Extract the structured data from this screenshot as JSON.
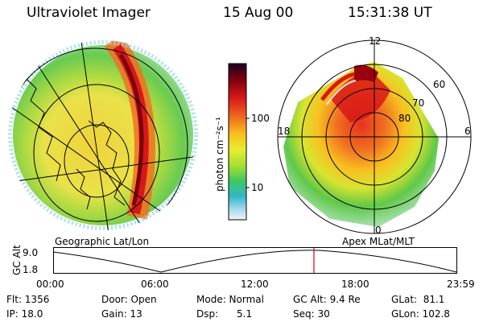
{
  "header": {
    "instrument": "Ultraviolet Imager",
    "date": "15 Aug 00",
    "time": "15:31:38 UT"
  },
  "colorbar": {
    "unit_label": "photon cm⁻²s⁻¹",
    "ticks": [
      "100",
      "10"
    ],
    "scale": "log",
    "colors": [
      "#2a0030",
      "#7a0010",
      "#d81818",
      "#f07020",
      "#f8c020",
      "#e8ec30",
      "#a8e030",
      "#40c860",
      "#30b8c8",
      "#a0d8f0",
      "#f0f0f0"
    ]
  },
  "left_panel": {
    "caption": "Geographic Lat/Lon"
  },
  "right_panel": {
    "caption": "Apex MLat/MLT",
    "lat_labels": [
      "60",
      "70",
      "80"
    ],
    "mlt_labels": [
      "12",
      "18",
      "6",
      "0"
    ]
  },
  "timeline": {
    "ylabel": "GC Alt",
    "y_ticks": [
      "9.0",
      "1.8"
    ],
    "x_ticks": [
      "00:00",
      "06:00",
      "12:00",
      "18:00",
      "23:59"
    ],
    "marker_time": "15:31:38"
  },
  "info": {
    "col1": [
      "Flt: 1356",
      "IP: 18.0"
    ],
    "col2": [
      "Door: Open",
      "Gain: 13"
    ],
    "col3": [
      "Mode: Normal",
      "Dsp:      5.1"
    ],
    "col4": [
      "GC Alt: 9.4 Re",
      "Seq: 30"
    ],
    "col5": [
      "GLat:  81.1",
      "GLon: 102.8"
    ]
  }
}
